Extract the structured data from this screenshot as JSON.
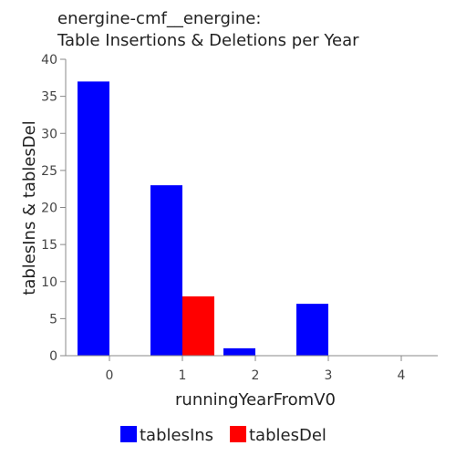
{
  "chart_data": {
    "type": "bar",
    "title_lines": [
      "energine-cmf__energine:",
      "Table Insertions & Deletions per Year"
    ],
    "xlabel": "runningYearFromV0",
    "ylabel": "tablesIns & tablesDel",
    "categories": [
      "0",
      "1",
      "2",
      "3",
      "4"
    ],
    "ylim": [
      0,
      40
    ],
    "yticks": [
      "0",
      "5",
      "10",
      "15",
      "20",
      "25",
      "30",
      "35",
      "40"
    ],
    "series": [
      {
        "name": "tablesIns",
        "color": "#0000ff",
        "values": [
          37,
          23,
          1,
          7,
          0
        ]
      },
      {
        "name": "tablesDel",
        "color": "#ff0000",
        "values": [
          0,
          8,
          0,
          0,
          0
        ]
      }
    ],
    "legend_position": "bottom",
    "grid": false
  }
}
